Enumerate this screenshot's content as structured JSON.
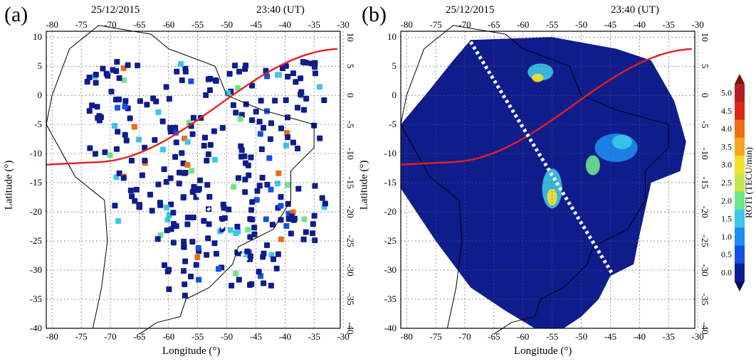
{
  "panels": [
    {
      "label": "(a)",
      "date": "25/12/2015",
      "time": "23:40 (UT)",
      "xlabel": "Longitude (°)",
      "ylabel": "Latitude (°)"
    },
    {
      "label": "(b)",
      "date": "25/12/2015",
      "time": "23:40 (UT)",
      "xlabel": "Longitude (°)",
      "ylabel": ""
    }
  ],
  "lon_ticks": [
    "-80",
    "-75",
    "-70",
    "-65",
    "-60",
    "-55",
    "-50",
    "-45",
    "-40",
    "-35",
    "-30"
  ],
  "lat_ticks": [
    "10",
    "5",
    "0",
    "-5",
    "-10",
    "-15",
    "-20",
    "-25",
    "-30",
    "-35",
    "-40"
  ],
  "colorbar": {
    "title": "ROTI (TECU/min)",
    "ticks": [
      "5.0",
      "4.5",
      "4.0",
      "3.5",
      "3.0",
      "2.5",
      "2.0",
      "1.5",
      "1.0",
      "0.5",
      "0.0"
    ],
    "colors": [
      "#b41e1e",
      "#dc2814",
      "#f06e14",
      "#f5a51e",
      "#f5e128",
      "#c3e650",
      "#6ee68c",
      "#3cc8e6",
      "#1e8cf0",
      "#1450e6",
      "#0a1e96"
    ]
  },
  "colors": {
    "terminator": "#e32020",
    "low": "#0f1c8c"
  }
}
